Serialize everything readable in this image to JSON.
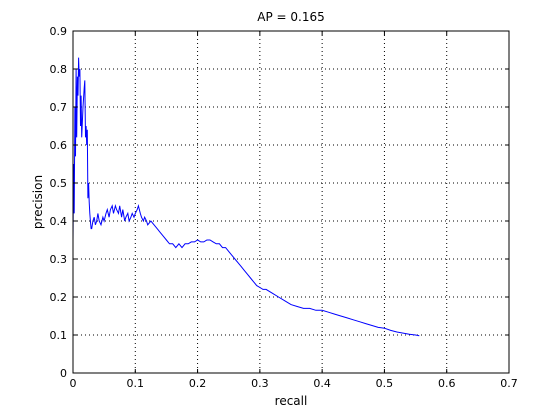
{
  "chart_data": {
    "type": "line",
    "title": "AP = 0.165",
    "xlabel": "recall",
    "ylabel": "precision",
    "xlim": [
      0,
      0.7
    ],
    "ylim": [
      0,
      0.9
    ],
    "xticks": [
      "0",
      "0.1",
      "0.2",
      "0.3",
      "0.4",
      "0.5",
      "0.6",
      "0.7"
    ],
    "yticks": [
      "0",
      "0.1",
      "0.2",
      "0.3",
      "0.4",
      "0.5",
      "0.6",
      "0.7",
      "0.8",
      "0.9"
    ],
    "grid": true,
    "series": [
      {
        "color": "#0000ff",
        "x": [
          0.0,
          0.001,
          0.002,
          0.003,
          0.004,
          0.005,
          0.006,
          0.007,
          0.008,
          0.009,
          0.01,
          0.011,
          0.012,
          0.013,
          0.014,
          0.016,
          0.018,
          0.019,
          0.02,
          0.021,
          0.022,
          0.023,
          0.024,
          0.025,
          0.026,
          0.027,
          0.028,
          0.029,
          0.03,
          0.032,
          0.034,
          0.036,
          0.038,
          0.04,
          0.042,
          0.045,
          0.048,
          0.05,
          0.053,
          0.055,
          0.058,
          0.06,
          0.063,
          0.065,
          0.068,
          0.07,
          0.073,
          0.075,
          0.078,
          0.08,
          0.083,
          0.085,
          0.088,
          0.09,
          0.093,
          0.095,
          0.098,
          0.1,
          0.103,
          0.105,
          0.108,
          0.11,
          0.113,
          0.115,
          0.118,
          0.12,
          0.125,
          0.13,
          0.135,
          0.14,
          0.145,
          0.15,
          0.155,
          0.16,
          0.165,
          0.17,
          0.175,
          0.18,
          0.185,
          0.19,
          0.195,
          0.2,
          0.205,
          0.21,
          0.215,
          0.22,
          0.225,
          0.23,
          0.235,
          0.24,
          0.245,
          0.25,
          0.255,
          0.26,
          0.265,
          0.27,
          0.275,
          0.28,
          0.285,
          0.29,
          0.295,
          0.3,
          0.305,
          0.31,
          0.32,
          0.33,
          0.34,
          0.35,
          0.36,
          0.37,
          0.38,
          0.39,
          0.4,
          0.41,
          0.42,
          0.43,
          0.44,
          0.45,
          0.46,
          0.47,
          0.48,
          0.49,
          0.5,
          0.51,
          0.52,
          0.53,
          0.54,
          0.55,
          0.556
        ],
        "y": [
          0.35,
          0.55,
          0.42,
          0.7,
          0.57,
          0.8,
          0.62,
          0.78,
          0.73,
          0.83,
          0.78,
          0.8,
          0.65,
          0.73,
          0.62,
          0.7,
          0.75,
          0.77,
          0.62,
          0.65,
          0.6,
          0.64,
          0.46,
          0.5,
          0.45,
          0.42,
          0.4,
          0.38,
          0.38,
          0.4,
          0.41,
          0.39,
          0.4,
          0.42,
          0.4,
          0.39,
          0.41,
          0.4,
          0.42,
          0.43,
          0.41,
          0.43,
          0.44,
          0.42,
          0.44,
          0.43,
          0.42,
          0.44,
          0.41,
          0.43,
          0.4,
          0.41,
          0.42,
          0.4,
          0.41,
          0.42,
          0.41,
          0.42,
          0.43,
          0.44,
          0.42,
          0.41,
          0.4,
          0.41,
          0.4,
          0.39,
          0.4,
          0.39,
          0.38,
          0.37,
          0.36,
          0.35,
          0.34,
          0.34,
          0.33,
          0.34,
          0.33,
          0.34,
          0.34,
          0.345,
          0.345,
          0.35,
          0.345,
          0.345,
          0.35,
          0.35,
          0.345,
          0.34,
          0.34,
          0.33,
          0.33,
          0.32,
          0.31,
          0.3,
          0.29,
          0.28,
          0.27,
          0.26,
          0.25,
          0.24,
          0.23,
          0.225,
          0.22,
          0.22,
          0.21,
          0.2,
          0.19,
          0.18,
          0.175,
          0.17,
          0.17,
          0.165,
          0.165,
          0.16,
          0.155,
          0.15,
          0.145,
          0.14,
          0.135,
          0.13,
          0.125,
          0.12,
          0.118,
          0.112,
          0.108,
          0.105,
          0.102,
          0.1,
          0.098
        ]
      }
    ]
  }
}
